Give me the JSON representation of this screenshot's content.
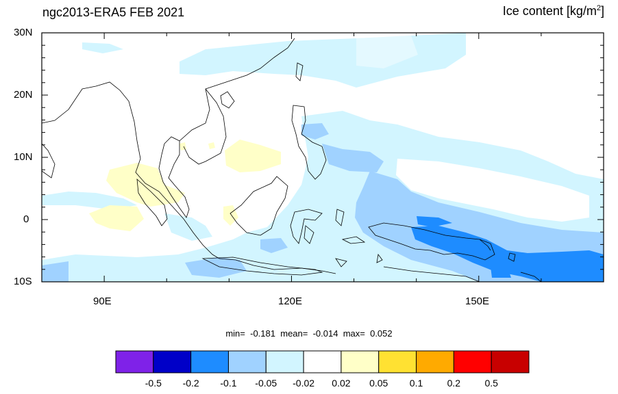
{
  "title_left": "ngc2013-ERA5 FEB 2021",
  "title_right_main": "Ice content  [kg/m",
  "title_right_sup": "2",
  "title_right_end": "]",
  "stats": {
    "min_label": "min=",
    "min": "-0.181",
    "mean_label": "mean=",
    "mean": "-0.014",
    "max_label": "max=",
    "max": "0.052"
  },
  "lat_labels": [
    "30N",
    "20N",
    "10N",
    "0",
    "10S"
  ],
  "lon_labels": [
    "90E",
    "120E",
    "150E"
  ],
  "colorbar": {
    "colors": [
      "#7f22e8",
      "#0000c8",
      "#1e8cff",
      "#a0d2ff",
      "#d2f5ff",
      "#ffffff",
      "#ffffc8",
      "#ffe132",
      "#ffaa00",
      "#ff0000",
      "#c80000"
    ],
    "labels": [
      "-0.5",
      "-0.2",
      "-0.1",
      "-0.05",
      "-0.02",
      "0.02",
      "0.05",
      "0.1",
      "0.2",
      "0.5"
    ]
  },
  "map_extent": {
    "lon_min": 80,
    "lon_max": 170,
    "lat_min": -10,
    "lat_max": 30
  }
}
